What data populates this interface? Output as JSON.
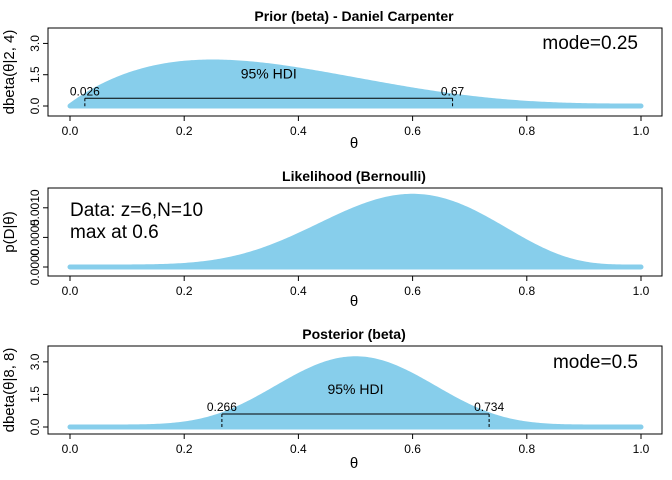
{
  "chart_data": [
    {
      "type": "area",
      "title": "Prior (beta) - Daniel Carpenter",
      "xlabel": "θ",
      "ylabel": "dbeta(θ|2, 4)",
      "beta": [
        2,
        4
      ],
      "xlim": [
        0,
        1
      ],
      "ylim": [
        0,
        3.5
      ],
      "xticks": [
        "0.0",
        "0.2",
        "0.4",
        "0.6",
        "0.8",
        "1.0"
      ],
      "yticks": [
        "0.0",
        "1.5",
        "3.0"
      ],
      "annotation": "mode=0.25",
      "hdi_label": "95% HDI",
      "hdi": {
        "low": 0.026,
        "high": 0.67,
        "low_label": "0.026",
        "high_label": "0.67",
        "height": 0.37
      },
      "fill": "#87ceeb"
    },
    {
      "type": "area",
      "title": "Likelihood (Bernoulli)",
      "xlabel": "θ",
      "ylabel": "p(D|θ)",
      "bernoulli": {
        "z": 6,
        "N": 10
      },
      "xlim": [
        0,
        1
      ],
      "ylim": [
        0,
        0.00125
      ],
      "xticks": [
        "0.0",
        "0.2",
        "0.4",
        "0.6",
        "0.8",
        "1.0"
      ],
      "yticks": [
        "0.0000",
        "0.0005",
        "0.0010"
      ],
      "annotation_lines": [
        "Data: z=6,N=10",
        "max at 0.6"
      ],
      "fill": "#87ceeb"
    },
    {
      "type": "area",
      "title": "Posterior (beta)",
      "xlabel": "θ",
      "ylabel": "dbeta(θ|8, 8)",
      "beta": [
        8,
        8
      ],
      "xlim": [
        0,
        1
      ],
      "ylim": [
        0,
        3.5
      ],
      "xticks": [
        "0.0",
        "0.2",
        "0.4",
        "0.6",
        "0.8",
        "1.0"
      ],
      "yticks": [
        "0.0",
        "1.5",
        "3.0"
      ],
      "annotation": "mode=0.5",
      "hdi_label": "95% HDI",
      "hdi": {
        "low": 0.266,
        "high": 0.734,
        "low_label": "0.266",
        "high_label": "0.734",
        "height": 0.6
      },
      "fill": "#87ceeb"
    }
  ]
}
